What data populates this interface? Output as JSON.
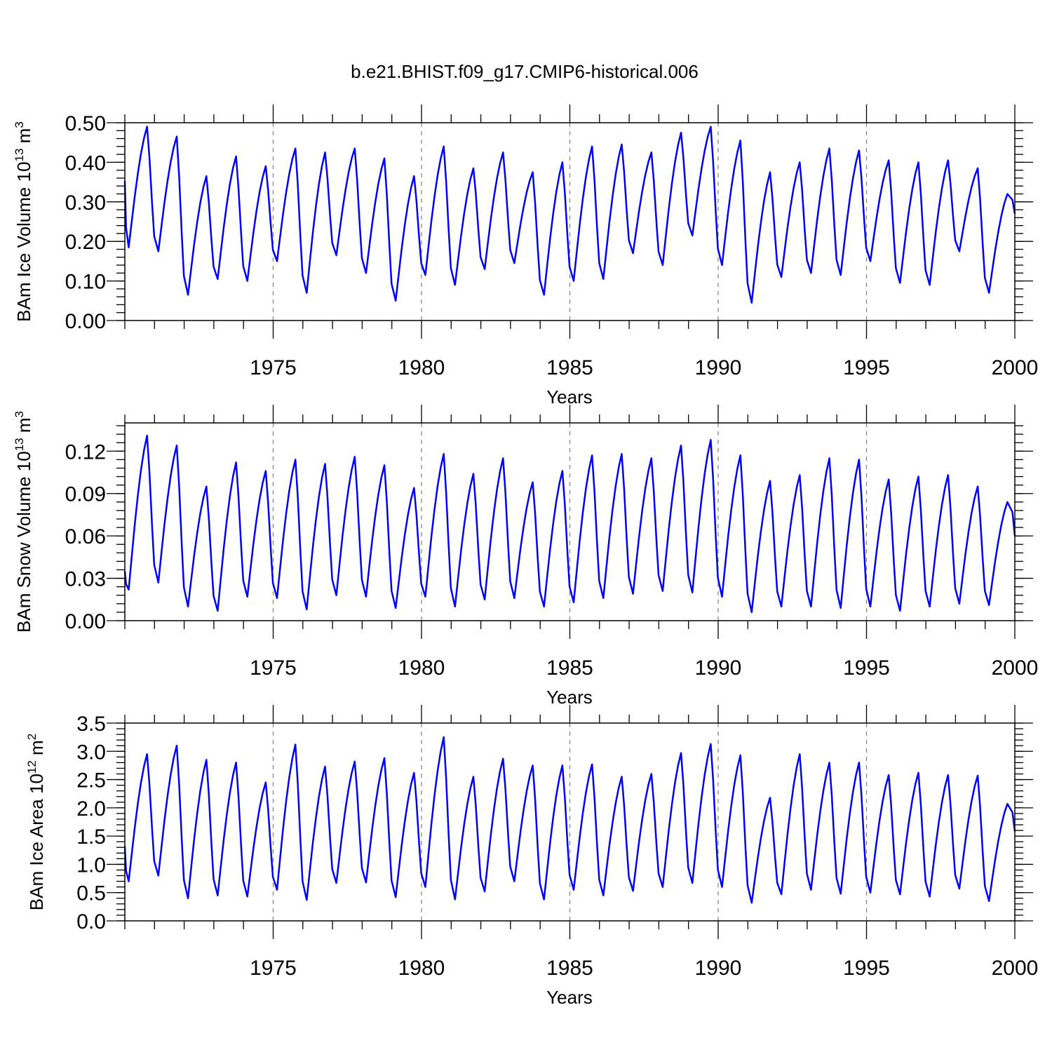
{
  "title": "b.e21.BHIST.f09_g17.CMIP6-historical.006",
  "colors": {
    "series": "#0000ff",
    "ref_line": "#808080",
    "axis": "#000000"
  },
  "chart_data": [
    {
      "type": "line",
      "name": "ice-volume",
      "xlabel": "Years",
      "ylabel": "BAm Ice Volume 10",
      "ylabel_exp": "13",
      "ylabel_unit": " m",
      "ylabel_unit_exp": "3",
      "xlim": [
        1970,
        2000
      ],
      "ylim": [
        0.0,
        0.5
      ],
      "yticks": [
        0.0,
        0.1,
        0.2,
        0.3,
        0.4,
        0.5
      ],
      "ytick_labels": [
        "0.00",
        "0.10",
        "0.20",
        "0.30",
        "0.40",
        "0.50"
      ],
      "xticks": [
        1975,
        1980,
        1985,
        1990,
        1995,
        2000
      ],
      "xtick_labels": [
        "1975",
        "1980",
        "1985",
        "1990",
        "1995",
        "2000"
      ],
      "reference_years": [
        1975,
        1980,
        1985,
        1990,
        1995
      ],
      "annual_max": [
        0.49,
        0.465,
        0.365,
        0.415,
        0.39,
        0.435,
        0.425,
        0.435,
        0.41,
        0.365,
        0.44,
        0.385,
        0.425,
        0.375,
        0.4,
        0.44,
        0.445,
        0.425,
        0.475,
        0.49,
        0.455,
        0.375,
        0.4,
        0.435,
        0.43,
        0.405,
        0.4,
        0.405,
        0.385,
        0.32
      ],
      "annual_min": [
        0.185,
        0.175,
        0.065,
        0.105,
        0.1,
        0.15,
        0.07,
        0.165,
        0.12,
        0.05,
        0.115,
        0.09,
        0.13,
        0.145,
        0.065,
        0.1,
        0.105,
        0.17,
        0.14,
        0.215,
        0.14,
        0.045,
        0.11,
        0.12,
        0.115,
        0.15,
        0.095,
        0.09,
        0.175,
        0.07
      ],
      "end_value": 0.27
    },
    {
      "type": "line",
      "name": "snow-volume",
      "xlabel": "Years",
      "ylabel": "BAm Snow Volume 10",
      "ylabel_exp": "13",
      "ylabel_unit": " m",
      "ylabel_unit_exp": "3",
      "xlim": [
        1970,
        2000
      ],
      "ylim": [
        0.0,
        0.14
      ],
      "yticks": [
        0.0,
        0.03,
        0.06,
        0.09,
        0.12
      ],
      "ytick_labels": [
        "0.00",
        "0.03",
        "0.06",
        "0.09",
        "0.12"
      ],
      "xticks": [
        1975,
        1980,
        1985,
        1990,
        1995,
        2000
      ],
      "xtick_labels": [
        "1975",
        "1980",
        "1985",
        "1990",
        "1995",
        "2000"
      ],
      "reference_years": [
        1975,
        1980,
        1985,
        1990,
        1995
      ],
      "annual_max": [
        0.131,
        0.124,
        0.095,
        0.112,
        0.106,
        0.114,
        0.111,
        0.116,
        0.11,
        0.094,
        0.118,
        0.104,
        0.115,
        0.098,
        0.106,
        0.117,
        0.118,
        0.115,
        0.124,
        0.128,
        0.117,
        0.099,
        0.103,
        0.115,
        0.114,
        0.1,
        0.102,
        0.103,
        0.095,
        0.084
      ],
      "annual_min": [
        0.022,
        0.027,
        0.01,
        0.007,
        0.017,
        0.016,
        0.008,
        0.018,
        0.017,
        0.009,
        0.017,
        0.01,
        0.015,
        0.016,
        0.01,
        0.013,
        0.016,
        0.019,
        0.021,
        0.02,
        0.017,
        0.006,
        0.01,
        0.01,
        0.009,
        0.01,
        0.007,
        0.01,
        0.012,
        0.011
      ],
      "start_value": 0.035,
      "end_value": 0.06
    },
    {
      "type": "line",
      "name": "ice-area",
      "xlabel": "Years",
      "ylabel": "BAm Ice Area 10",
      "ylabel_exp": "12",
      "ylabel_unit": " m",
      "ylabel_unit_exp": "2",
      "xlim": [
        1970,
        2000
      ],
      "ylim": [
        0.0,
        3.5
      ],
      "yticks": [
        0.0,
        0.5,
        1.0,
        1.5,
        2.0,
        2.5,
        3.0,
        3.5
      ],
      "ytick_labels": [
        "0.0",
        "0.5",
        "1.0",
        "1.5",
        "2.0",
        "2.5",
        "3.0",
        "3.5"
      ],
      "xticks": [
        1975,
        1980,
        1985,
        1990,
        1995,
        2000
      ],
      "xtick_labels": [
        "1975",
        "1980",
        "1985",
        "1990",
        "1995",
        "2000"
      ],
      "reference_years": [
        1975,
        1980,
        1985,
        1990,
        1995
      ],
      "annual_max": [
        2.95,
        3.1,
        2.85,
        2.8,
        2.45,
        3.12,
        2.73,
        2.82,
        2.88,
        2.62,
        3.25,
        2.55,
        2.87,
        2.75,
        2.75,
        2.77,
        2.55,
        2.6,
        2.97,
        3.13,
        2.93,
        2.18,
        2.95,
        2.8,
        2.8,
        2.58,
        2.62,
        2.58,
        2.57,
        2.07
      ],
      "annual_min": [
        0.7,
        0.8,
        0.4,
        0.45,
        0.43,
        0.55,
        0.37,
        0.67,
        0.68,
        0.42,
        0.6,
        0.38,
        0.52,
        0.7,
        0.38,
        0.55,
        0.45,
        0.53,
        0.6,
        0.67,
        0.6,
        0.32,
        0.47,
        0.55,
        0.48,
        0.5,
        0.47,
        0.43,
        0.57,
        0.35
      ],
      "start_value": 1.32,
      "end_value": 1.58
    }
  ]
}
